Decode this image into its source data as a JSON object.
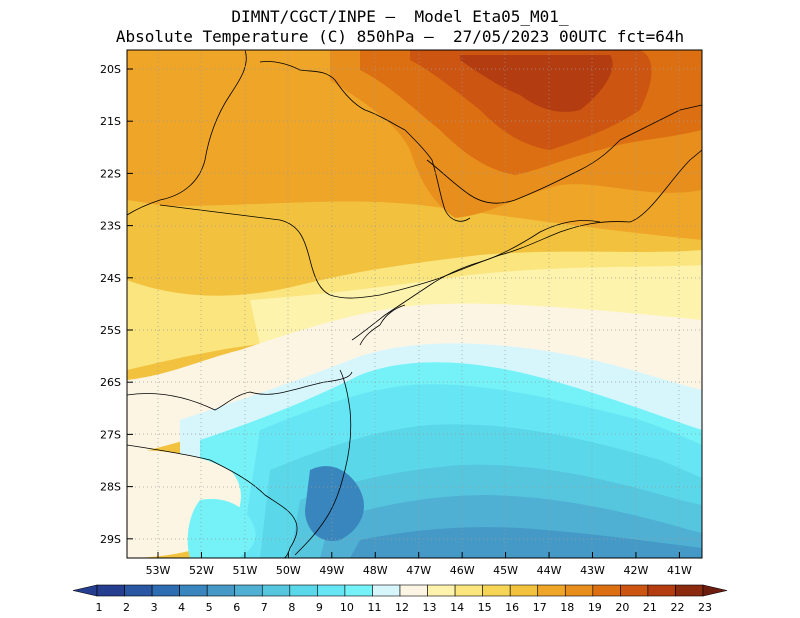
{
  "title_line1": "DIMNT/CGCT/INPE –  Model Eta05_M01_",
  "title_line2": "Absolute Temperature (C) 850hPa –  27/05/2023 00UTC fct=64h",
  "lat_labels": [
    "20S",
    "21S",
    "22S",
    "23S",
    "24S",
    "25S",
    "26S",
    "27S",
    "28S",
    "29S"
  ],
  "lon_labels": [
    "53W",
    "52W",
    "51W",
    "50W",
    "49W",
    "48W",
    "47W",
    "46W",
    "45W",
    "44W",
    "43W",
    "42W",
    "41W"
  ],
  "colorbar_labels": [
    "1",
    "2",
    "3",
    "4",
    "5",
    "6",
    "7",
    "8",
    "9",
    "10",
    "11",
    "12",
    "13",
    "14",
    "15",
    "16",
    "17",
    "18",
    "19",
    "20",
    "21",
    "22",
    "23"
  ],
  "colorbar_colors": [
    "#263e8f",
    "#2a57a4",
    "#2e6db1",
    "#3985bd",
    "#4499c6",
    "#4fb0d3",
    "#56c6df",
    "#5ad8ea",
    "#66e6f4",
    "#74f2f8",
    "#d6f6fc",
    "#fcf5e4",
    "#fdf3ac",
    "#fae57e",
    "#f6d556",
    "#f2c23e",
    "#eea528",
    "#e88e1c",
    "#dc6f12",
    "#cc5511",
    "#b33c10",
    "#8c2a10",
    "#6d1c10"
  ],
  "map_legend": "colour-filled temperature at 850hPa over southern/southeastern Brazil with state borders and coastline"
}
